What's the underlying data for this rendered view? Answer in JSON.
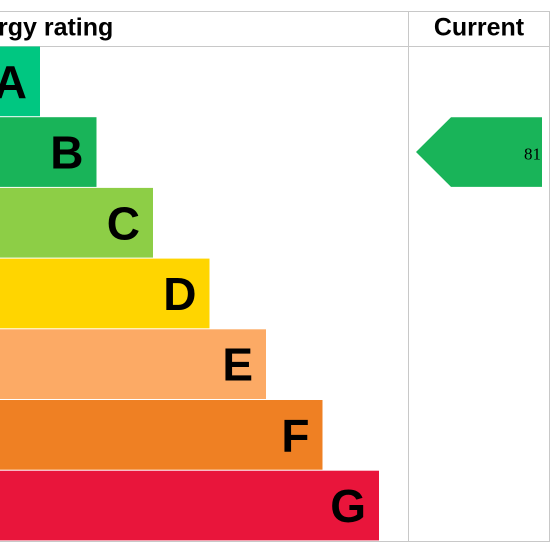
{
  "header": {
    "rating": "rgy rating",
    "current": "Current"
  },
  "bands": [
    {
      "letter": "A",
      "color": "#00c781"
    },
    {
      "letter": "B",
      "color": "#19b459"
    },
    {
      "letter": "C",
      "color": "#8dce46"
    },
    {
      "letter": "D",
      "color": "#ffd500"
    },
    {
      "letter": "E",
      "color": "#fcaa65"
    },
    {
      "letter": "F",
      "color": "#ef8023"
    },
    {
      "letter": "G",
      "color": "#e9153b"
    }
  ],
  "current": {
    "value": 81,
    "color": "#19b459"
  }
}
